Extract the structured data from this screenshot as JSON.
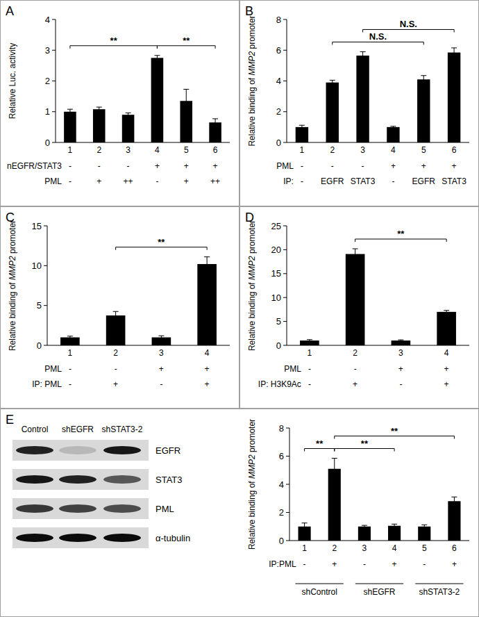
{
  "chart_data": [
    {
      "type": "bar",
      "title": "A",
      "y_label": "Relative Luc. activity",
      "categories": [
        "1",
        "2",
        "3",
        "4",
        "5",
        "6"
      ],
      "values": [
        1.0,
        1.08,
        0.9,
        2.75,
        1.35,
        0.65
      ],
      "errors": [
        0.08,
        0.07,
        0.06,
        0.08,
        0.38,
        0.12
      ],
      "color": "#000000",
      "ylim": [
        0,
        4
      ],
      "yticks": [
        0,
        1,
        2,
        3,
        4
      ],
      "condition_rows": [
        {
          "label": "nEGFR/STAT3",
          "values": [
            "-",
            "-",
            "-",
            "+",
            "+",
            "+"
          ]
        },
        {
          "label": "PML",
          "values": [
            "-",
            "+",
            "++",
            "-",
            "+",
            "++"
          ]
        }
      ],
      "annotations": [
        {
          "text": "**",
          "from": "1",
          "to": "4"
        },
        {
          "text": "**",
          "from": "4",
          "to": "6"
        }
      ]
    },
    {
      "type": "bar",
      "title": "B",
      "y_label": "Relative binding of MMP2 promoter",
      "categories": [
        "1",
        "2",
        "3",
        "4",
        "5",
        "6"
      ],
      "values": [
        1.0,
        3.9,
        5.65,
        1.0,
        4.1,
        5.85
      ],
      "errors": [
        0.12,
        0.15,
        0.25,
        0.05,
        0.25,
        0.3
      ],
      "color": "#000000",
      "ylim": [
        0,
        8
      ],
      "yticks": [
        0,
        2,
        4,
        6,
        8
      ],
      "condition_rows": [
        {
          "label": "PML",
          "values": [
            "-",
            "-",
            "-",
            "+",
            "+",
            "+"
          ]
        },
        {
          "label": "IP:",
          "values": [
            "-",
            "EGFR",
            "STAT3",
            "-",
            "EGFR",
            "STAT3"
          ]
        }
      ],
      "annotations": [
        {
          "text": "N.S.",
          "from": "2",
          "to": "5"
        },
        {
          "text": "N.S.",
          "from": "3",
          "to": "6"
        }
      ]
    },
    {
      "type": "bar",
      "title": "C",
      "y_label": "Relative binding of MMP2 promoter",
      "categories": [
        "1",
        "2",
        "3",
        "4"
      ],
      "values": [
        1.0,
        3.75,
        1.0,
        10.2
      ],
      "errors": [
        0.15,
        0.5,
        0.2,
        0.9
      ],
      "color": "#000000",
      "ylim": [
        0,
        15
      ],
      "yticks": [
        0,
        5,
        10,
        15
      ],
      "condition_rows": [
        {
          "label": "PML",
          "values": [
            "-",
            "-",
            "+",
            "+"
          ]
        },
        {
          "label": "IP: PML",
          "values": [
            "-",
            "+",
            "-",
            "+"
          ]
        }
      ],
      "annotations": [
        {
          "text": "**",
          "from": "2",
          "to": "4"
        }
      ]
    },
    {
      "type": "bar",
      "title": "D",
      "y_label": "Relative binding of MMP2 promoter",
      "categories": [
        "1",
        "2",
        "3",
        "4"
      ],
      "values": [
        1.0,
        19.1,
        1.0,
        7.0
      ],
      "errors": [
        0.2,
        1.1,
        0.15,
        0.3
      ],
      "color": "#000000",
      "ylim": [
        0,
        25
      ],
      "yticks": [
        0,
        5,
        10,
        15,
        20,
        25
      ],
      "condition_rows": [
        {
          "label": "PML",
          "values": [
            "-",
            "-",
            "+",
            "+"
          ]
        },
        {
          "label": "IP: H3K9Ac",
          "values": [
            "-",
            "+",
            "-",
            "+"
          ]
        }
      ],
      "annotations": [
        {
          "text": "**",
          "from": "2",
          "to": "4"
        }
      ]
    },
    {
      "type": "bar",
      "title": "E",
      "y_label": "Relative binding of MMP2 promoter",
      "categories": [
        "1",
        "2",
        "3",
        "4",
        "5",
        "6"
      ],
      "values": [
        1.0,
        5.1,
        1.0,
        1.05,
        1.0,
        2.8
      ],
      "errors": [
        0.25,
        0.75,
        0.08,
        0.12,
        0.12,
        0.3
      ],
      "color": "#000000",
      "ylim": [
        0,
        8
      ],
      "yticks": [
        0,
        2,
        4,
        6,
        8
      ],
      "condition_rows": [
        {
          "label": "IP:PML",
          "values": [
            "-",
            "+",
            "-",
            "+",
            "-",
            "+"
          ]
        }
      ],
      "groups": [
        {
          "label": "shControl",
          "from": "1",
          "to": "2"
        },
        {
          "label": "shEGFR",
          "from": "3",
          "to": "4"
        },
        {
          "label": "shSTAT3-2",
          "from": "5",
          "to": "6"
        }
      ],
      "annotations": [
        {
          "text": "**",
          "from": "1",
          "to": "2"
        },
        {
          "text": "**",
          "from": "2",
          "to": "4"
        },
        {
          "text": "**",
          "from": "2",
          "to": "6"
        }
      ]
    }
  ],
  "blot": {
    "lanes": [
      "Control",
      "shEGFR",
      "shSTAT3-2"
    ],
    "rows": [
      {
        "label": "EGFR",
        "intensity": [
          0.85,
          0.15,
          0.9
        ]
      },
      {
        "label": "STAT3",
        "intensity": [
          0.9,
          0.85,
          0.6
        ]
      },
      {
        "label": "PML",
        "intensity": [
          0.75,
          0.7,
          0.65
        ]
      },
      {
        "label": "α-tubulin",
        "intensity": [
          0.95,
          0.95,
          0.95
        ]
      }
    ]
  }
}
